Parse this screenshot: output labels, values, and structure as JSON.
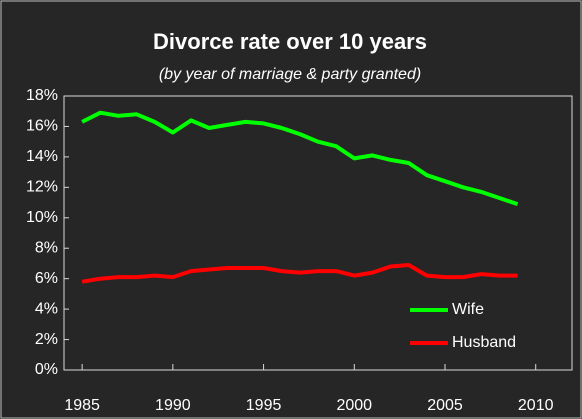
{
  "chart_data": {
    "type": "line",
    "title": "Divorce rate over 10 years",
    "subtitle": "(by year of marriage & party granted)",
    "x": [
      1985,
      1986,
      1987,
      1988,
      1989,
      1990,
      1991,
      1992,
      1993,
      1994,
      1995,
      1996,
      1997,
      1998,
      1999,
      2000,
      2001,
      2002,
      2003,
      2004,
      2005,
      2006,
      2007,
      2008,
      2009
    ],
    "series": [
      {
        "name": "Wife",
        "color": "#00ff00",
        "values": [
          16.3,
          16.9,
          16.7,
          16.8,
          16.3,
          15.6,
          16.4,
          15.9,
          16.1,
          16.3,
          16.2,
          15.9,
          15.5,
          15.0,
          14.7,
          13.9,
          14.1,
          13.8,
          13.6,
          12.8,
          12.4,
          12.0,
          11.7,
          11.3,
          10.9
        ]
      },
      {
        "name": "Husband",
        "color": "#ff0000",
        "values": [
          5.8,
          6.0,
          6.1,
          6.1,
          6.2,
          6.1,
          6.5,
          6.6,
          6.7,
          6.7,
          6.7,
          6.5,
          6.4,
          6.5,
          6.5,
          6.2,
          6.4,
          6.8,
          6.9,
          6.2,
          6.1,
          6.1,
          6.3,
          6.2,
          6.2
        ]
      }
    ],
    "xlim": [
      1984,
      2012
    ],
    "xticks": [
      1985,
      1990,
      1995,
      2000,
      2005,
      2010
    ],
    "ylim": [
      0,
      18
    ],
    "yticks": [
      {
        "value": 0,
        "label": "0%"
      },
      {
        "value": 2,
        "label": "2%"
      },
      {
        "value": 4,
        "label": "4%"
      },
      {
        "value": 6,
        "label": "6%"
      },
      {
        "value": 8,
        "label": "8%"
      },
      {
        "value": 10,
        "label": "10%"
      },
      {
        "value": 12,
        "label": "12%"
      },
      {
        "value": 14,
        "label": "14%"
      },
      {
        "value": 16,
        "label": "16%"
      },
      {
        "value": 18,
        "label": "18%"
      }
    ],
    "grid": false,
    "legend": "lower right"
  }
}
